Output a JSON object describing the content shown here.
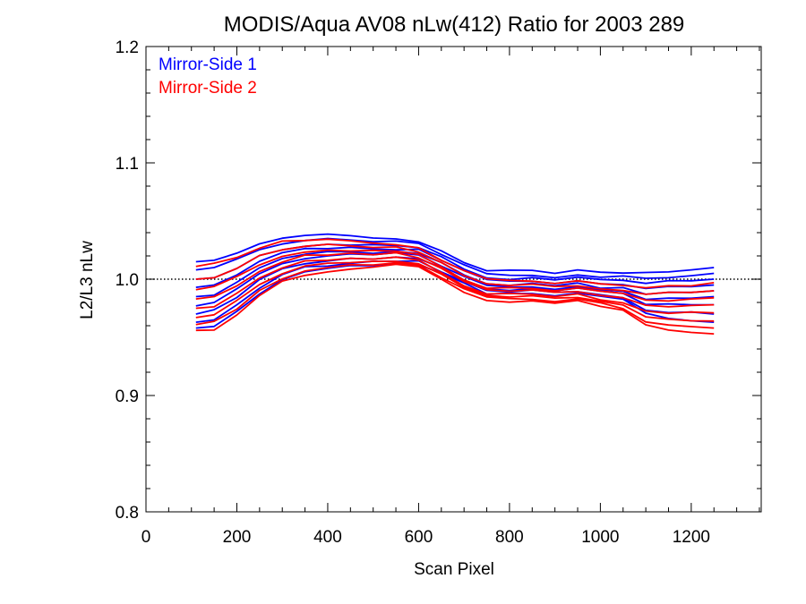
{
  "chart_data": {
    "type": "line",
    "title": "MODIS/Aqua AV08 nLw(412) Ratio for 2003 289",
    "xlabel": "Scan Pixel",
    "ylabel": "L2/L3 nLw",
    "xlim": [
      0,
      1354
    ],
    "ylim": [
      0.8,
      1.2
    ],
    "xticks": [
      0,
      200,
      400,
      600,
      800,
      1000,
      1200
    ],
    "xtick_labels": [
      "0",
      "200",
      "400",
      "600",
      "800",
      "1000",
      "1200"
    ],
    "yticks": [
      0.8,
      0.9,
      1.0,
      1.1,
      1.2
    ],
    "ytick_labels": [
      "0.8",
      "0.9",
      "1.0",
      "1.1",
      "1.2"
    ],
    "reference_line": {
      "y": 1.0,
      "style": "dotted",
      "color": "#000000"
    },
    "legend": {
      "placement": "top-left"
    },
    "x": [
      110,
      150,
      200,
      250,
      300,
      350,
      400,
      450,
      500,
      550,
      600,
      650,
      700,
      750,
      800,
      850,
      900,
      950,
      1000,
      1050,
      1100,
      1150,
      1200,
      1250
    ],
    "series": [
      {
        "name": "Mirror-Side 1",
        "color": "#0000ff",
        "profiles": [
          [
            1.015,
            1.017,
            1.022,
            1.03,
            1.036,
            1.038,
            1.038,
            1.037,
            1.035,
            1.035,
            1.032,
            1.024,
            1.015,
            1.008,
            1.007,
            1.008,
            1.005,
            1.008,
            1.006,
            1.006,
            1.005,
            1.007,
            1.008,
            1.01
          ],
          [
            1.008,
            1.01,
            1.017,
            1.025,
            1.031,
            1.034,
            1.035,
            1.034,
            1.033,
            1.032,
            1.03,
            1.022,
            1.012,
            1.004,
            1.003,
            1.004,
            1.002,
            1.004,
            1.002,
            1.002,
            1.0,
            1.002,
            1.003,
            1.005
          ],
          [
            1.0,
            1.002,
            1.01,
            1.02,
            1.026,
            1.029,
            1.03,
            1.03,
            1.029,
            1.029,
            1.027,
            1.019,
            1.009,
            1.001,
            1.0,
            1.001,
            0.999,
            1.001,
            0.999,
            0.999,
            0.996,
            0.998,
            0.999,
            1.0
          ],
          [
            0.993,
            0.995,
            1.004,
            1.015,
            1.022,
            1.026,
            1.027,
            1.027,
            1.026,
            1.026,
            1.025,
            1.017,
            1.007,
            0.999,
            0.998,
            0.999,
            0.997,
            0.999,
            0.996,
            0.996,
            0.992,
            0.993,
            0.994,
            0.995
          ],
          [
            0.985,
            0.987,
            0.997,
            1.009,
            1.017,
            1.021,
            1.023,
            1.024,
            1.023,
            1.024,
            1.022,
            1.014,
            1.004,
            0.996,
            0.995,
            0.996,
            0.994,
            0.996,
            0.993,
            0.992,
            0.987,
            0.988,
            0.989,
            0.99
          ],
          [
            0.977,
            0.98,
            0.991,
            1.004,
            1.013,
            1.018,
            1.02,
            1.021,
            1.021,
            1.022,
            1.02,
            1.012,
            1.002,
            0.994,
            0.993,
            0.994,
            0.992,
            0.994,
            0.991,
            0.99,
            0.983,
            0.983,
            0.984,
            0.985
          ],
          [
            0.97,
            0.973,
            0.985,
            0.999,
            1.009,
            1.014,
            1.016,
            1.018,
            1.018,
            1.019,
            1.018,
            1.01,
            1.0,
            0.992,
            0.991,
            0.992,
            0.99,
            0.992,
            0.989,
            0.987,
            0.979,
            0.978,
            0.978,
            0.978
          ],
          [
            0.963,
            0.965,
            0.978,
            0.993,
            1.004,
            1.01,
            1.012,
            1.014,
            1.015,
            1.016,
            1.015,
            1.007,
            0.998,
            0.99,
            0.989,
            0.99,
            0.988,
            0.99,
            0.987,
            0.984,
            0.974,
            0.972,
            0.971,
            0.97
          ],
          [
            0.958,
            0.959,
            0.972,
            0.988,
            1.0,
            1.006,
            1.009,
            1.011,
            1.012,
            1.014,
            1.013,
            1.005,
            0.996,
            0.988,
            0.987,
            0.988,
            0.986,
            0.988,
            0.985,
            0.982,
            0.97,
            0.967,
            0.965,
            0.963
          ]
        ]
      },
      {
        "name": "Mirror-Side 2",
        "color": "#ff0000",
        "profiles": [
          [
            1.011,
            1.013,
            1.019,
            1.027,
            1.032,
            1.034,
            1.034,
            1.033,
            1.031,
            1.03,
            1.027,
            1.017,
            1.007,
            1.0,
            0.999,
            0.999,
            0.997,
            0.999,
            0.996,
            0.995,
            0.993,
            0.994,
            0.995,
            0.997
          ],
          [
            1.0,
            1.002,
            1.01,
            1.02,
            1.026,
            1.029,
            1.03,
            1.029,
            1.028,
            1.027,
            1.024,
            1.014,
            1.003,
            0.996,
            0.995,
            0.995,
            0.993,
            0.995,
            0.992,
            0.991,
            0.987,
            0.988,
            0.989,
            0.99
          ],
          [
            0.991,
            0.993,
            1.002,
            1.013,
            1.02,
            1.024,
            1.025,
            1.025,
            1.024,
            1.024,
            1.021,
            1.011,
            1.0,
            0.993,
            0.992,
            0.992,
            0.99,
            0.992,
            0.989,
            0.987,
            0.982,
            0.982,
            0.983,
            0.984
          ],
          [
            0.983,
            0.985,
            0.995,
            1.007,
            1.015,
            1.02,
            1.021,
            1.022,
            1.021,
            1.022,
            1.019,
            1.009,
            0.998,
            0.991,
            0.99,
            0.99,
            0.988,
            0.99,
            0.986,
            0.984,
            0.978,
            0.977,
            0.977,
            0.978
          ],
          [
            0.975,
            0.977,
            0.988,
            1.001,
            1.01,
            1.015,
            1.017,
            1.018,
            1.018,
            1.019,
            1.016,
            1.006,
            0.995,
            0.988,
            0.987,
            0.987,
            0.985,
            0.987,
            0.983,
            0.98,
            0.973,
            0.971,
            0.971,
            0.971
          ],
          [
            0.967,
            0.969,
            0.981,
            0.995,
            1.005,
            1.011,
            1.013,
            1.015,
            1.015,
            1.016,
            1.014,
            1.004,
            0.993,
            0.986,
            0.985,
            0.985,
            0.983,
            0.985,
            0.981,
            0.977,
            0.968,
            0.966,
            0.965,
            0.964
          ],
          [
            0.961,
            0.963,
            0.975,
            0.99,
            1.001,
            1.007,
            1.01,
            1.012,
            1.013,
            1.014,
            1.012,
            1.002,
            0.991,
            0.984,
            0.983,
            0.983,
            0.981,
            0.983,
            0.979,
            0.975,
            0.964,
            0.961,
            0.96,
            0.958
          ],
          [
            0.956,
            0.957,
            0.97,
            0.986,
            0.998,
            1.004,
            1.007,
            1.009,
            1.01,
            1.012,
            1.01,
            1.0,
            0.989,
            0.982,
            0.981,
            0.981,
            0.979,
            0.981,
            0.977,
            0.973,
            0.96,
            0.957,
            0.955,
            0.953
          ]
        ]
      }
    ]
  }
}
